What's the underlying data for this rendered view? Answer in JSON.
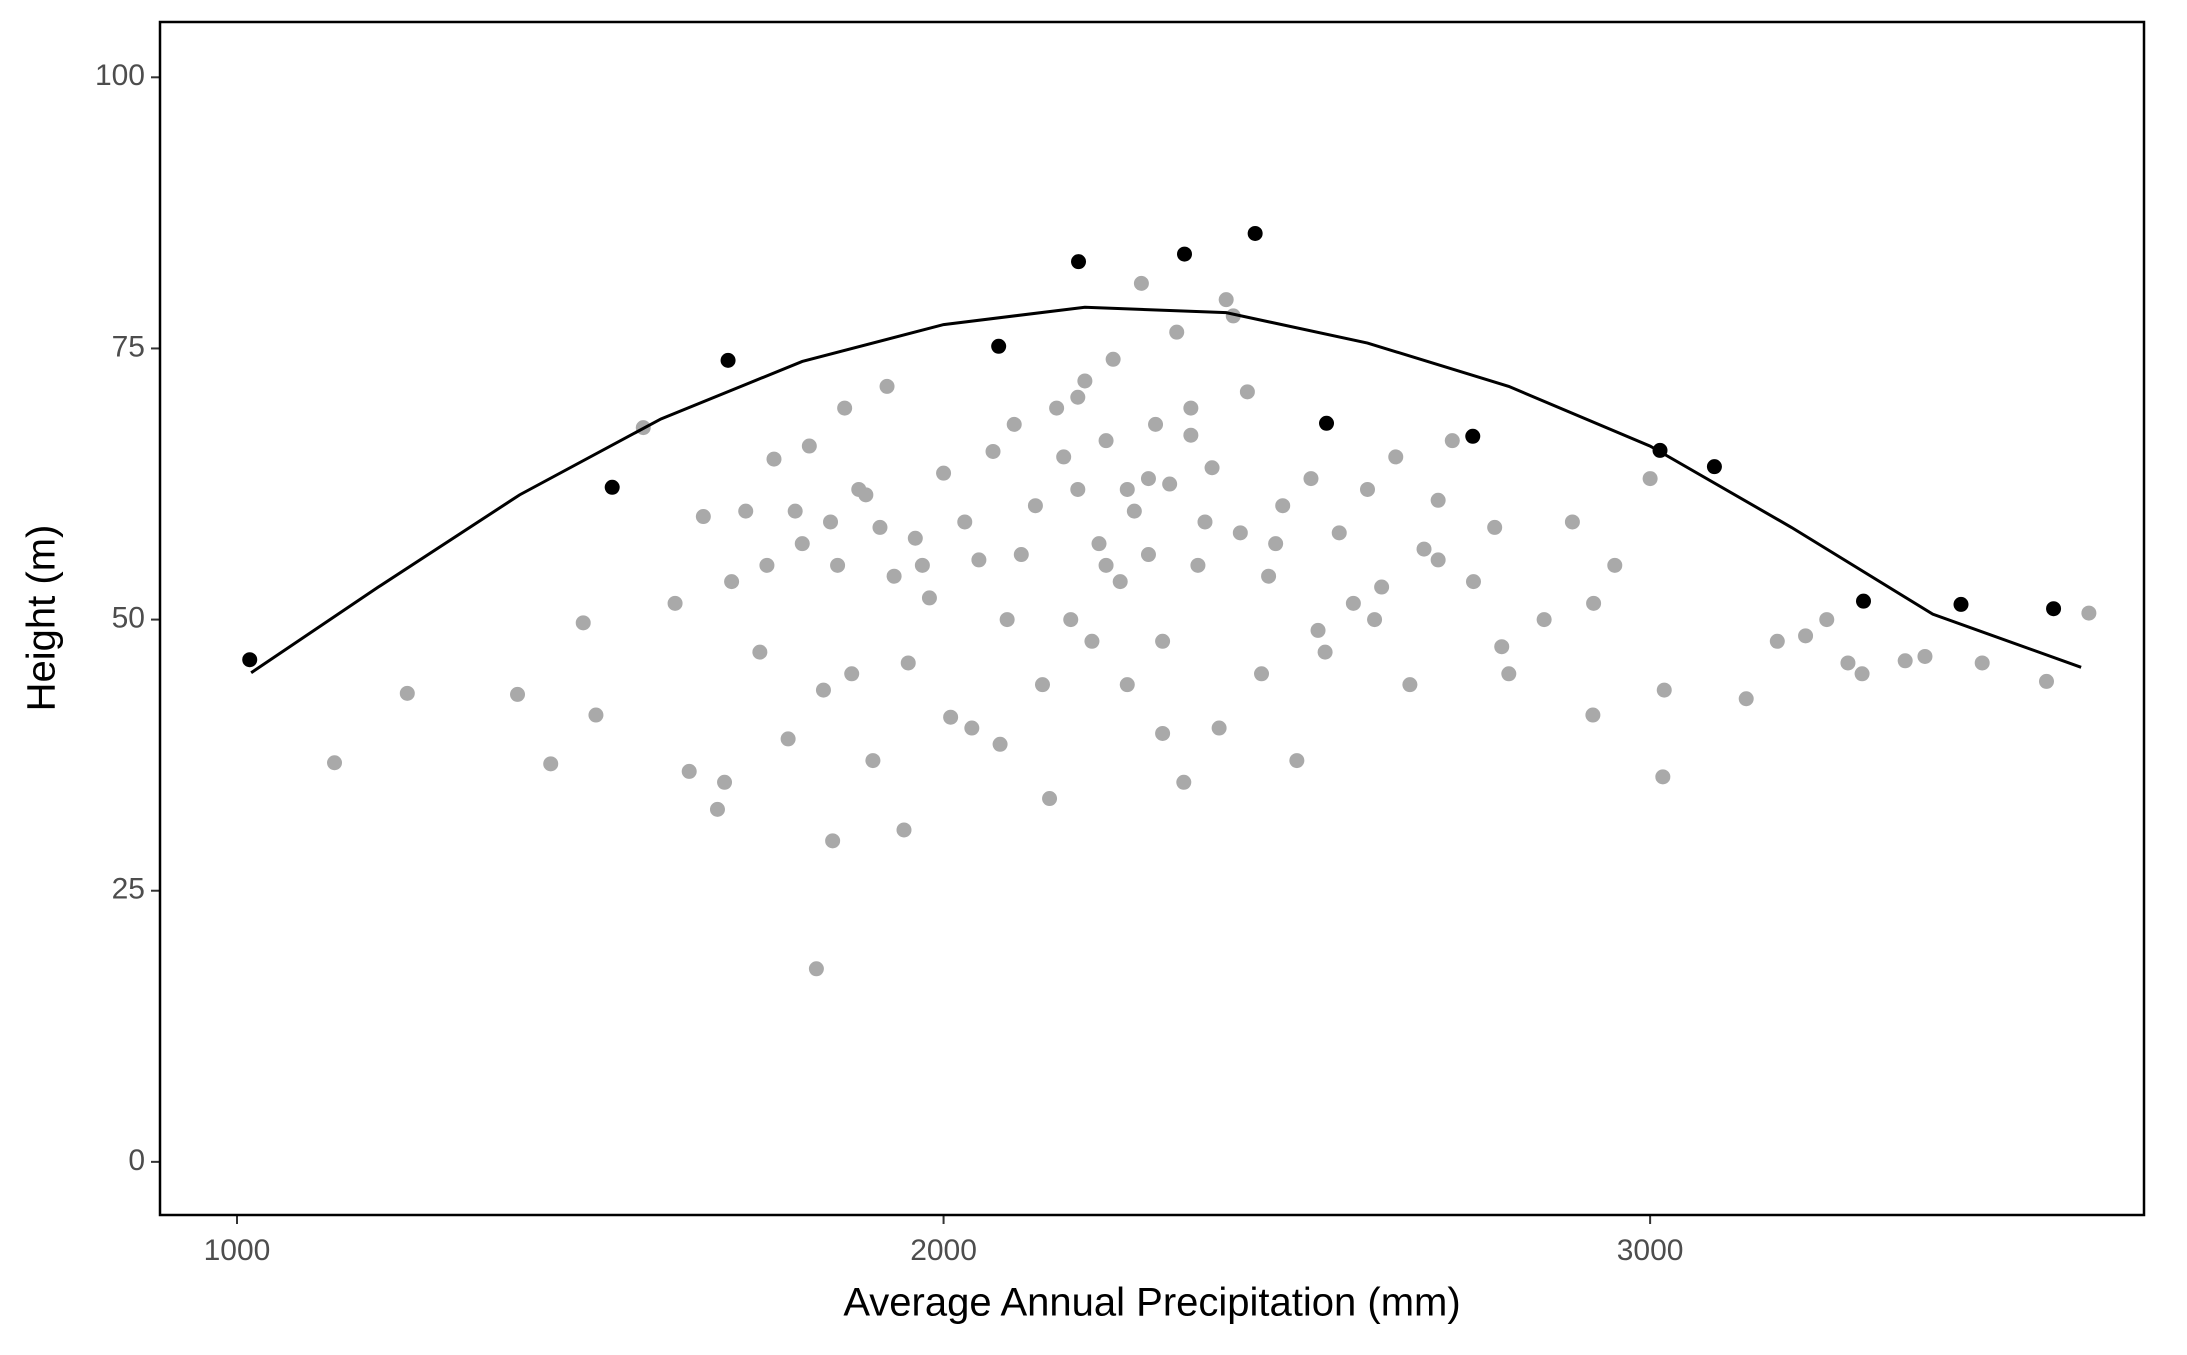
{
  "chart_data": {
    "type": "scatter",
    "x_label": "Average Annual Precipitation (mm)",
    "y_label": "Height (m)",
    "xlim": [
      891,
      3699
    ],
    "ylim": [
      -4.9,
      105.1
    ],
    "xticks": [
      1000,
      2000,
      3000
    ],
    "yticks": [
      0,
      25,
      50,
      75,
      100
    ],
    "grid": false,
    "series": [
      {
        "color": "#a9a9a9",
        "x": [
          1138,
          1241,
          1397,
          1444,
          1490,
          1508,
          1575,
          1820,
          1843,
          1944,
          2919,
          3018,
          3136,
          3361,
          3621,
          3561,
          3389,
          1620,
          1640,
          1660,
          1680,
          1700,
          1720,
          1740,
          1760,
          1780,
          1800,
          1810,
          1830,
          1850,
          1860,
          1870,
          1890,
          1900,
          1910,
          1920,
          1930,
          1950,
          1960,
          1980,
          2000,
          2010,
          2030,
          2050,
          2070,
          2080,
          2100,
          2110,
          2130,
          2150,
          2160,
          2180,
          2190,
          2200,
          2210,
          2220,
          2230,
          2240,
          2250,
          2260,
          2270,
          2280,
          2290,
          2300,
          2310,
          2320,
          2340,
          2350,
          2360,
          2380,
          2390,
          2400,
          2420,
          2430,
          2450,
          2460,
          2480,
          2500,
          2520,
          2540,
          2560,
          2580,
          2600,
          2620,
          2640,
          2660,
          2680,
          2700,
          2720,
          2750,
          2780,
          2800,
          2850,
          2890,
          2920,
          2950,
          3000,
          3020,
          3180,
          3220,
          3250,
          3280,
          3300,
          3470,
          1690,
          1750,
          1790,
          1840,
          1880,
          1970,
          2040,
          2090,
          2140,
          2170,
          2260,
          2330,
          2370,
          2410,
          2470,
          2530,
          2610,
          2700,
          2790,
          2230,
          2190,
          2310,
          2350,
          2290
        ],
        "values": [
          36.8,
          43.2,
          43.1,
          36.7,
          49.7,
          41.2,
          67.7,
          17.8,
          29.6,
          30.6,
          41.2,
          35.5,
          42.7,
          46.2,
          50.6,
          44.3,
          46.6,
          51.5,
          36,
          59.5,
          32.5,
          53.5,
          60,
          47,
          64.8,
          39,
          57,
          66,
          43.5,
          55,
          69.5,
          45,
          61.5,
          37,
          58.5,
          71.5,
          54,
          46,
          57.5,
          52,
          63.5,
          41,
          59,
          55.5,
          65.5,
          38.5,
          68,
          56,
          60.5,
          33.5,
          69.5,
          50,
          62,
          72,
          48,
          57,
          66.5,
          74,
          53.5,
          44,
          60,
          81,
          56,
          68,
          39.5,
          62.5,
          35,
          69.5,
          55,
          64,
          40,
          79.5,
          58,
          71,
          45,
          54,
          60.5,
          37,
          63,
          47,
          58,
          51.5,
          62,
          53,
          65,
          44,
          56.5,
          61,
          66.5,
          53.5,
          58.5,
          45,
          50,
          59,
          51.5,
          55,
          63,
          43.5,
          48,
          48.5,
          50,
          46,
          45,
          46,
          35,
          55,
          60,
          59,
          62,
          55,
          40,
          50,
          44,
          65,
          62,
          76.5,
          59,
          78,
          57,
          49,
          50,
          55.5,
          47.5,
          55,
          70.5,
          48,
          67,
          63
        ]
      },
      {
        "color": "#000000",
        "x": [
          1018,
          1531,
          1695,
          2078,
          2191,
          2341,
          2441,
          2542,
          2749,
          3014,
          3091,
          3302,
          3440,
          3571
        ],
        "values": [
          46.3,
          62.2,
          73.9,
          75.2,
          83.0,
          83.7,
          85.6,
          68.1,
          66.9,
          65.6,
          64.1,
          51.7,
          51.4,
          51.0
        ]
      },
      {
        "type": "line",
        "color": "#000000",
        "x": [
          1020,
          1200,
          1400,
          1600,
          1800,
          2000,
          2200,
          2400,
          2600,
          2800,
          3000,
          3200,
          3400,
          3610
        ],
        "values": [
          45.1,
          53,
          61.5,
          68.5,
          73.8,
          77.2,
          78.8,
          78.3,
          75.5,
          71.5,
          66,
          58.5,
          50.5,
          45.6
        ]
      }
    ]
  }
}
